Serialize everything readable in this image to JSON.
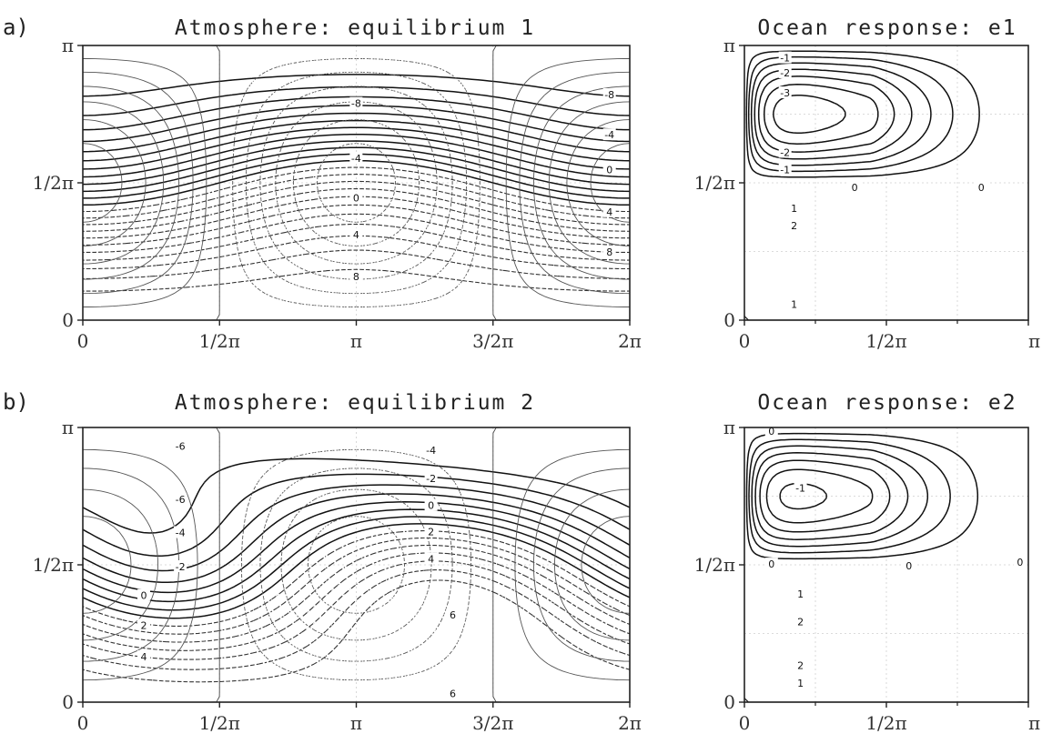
{
  "chart_data": [
    {
      "panel": "a)",
      "type": "contour",
      "title": "Atmosphere: equilibrium 1",
      "xticks": [
        "0",
        "1/2π",
        "π",
        "3/2π",
        "2π"
      ],
      "yticks": [
        "0",
        "1/2π",
        "π"
      ],
      "xlim": [
        0,
        6.2832
      ],
      "ylim": [
        0,
        3.1416
      ],
      "contour_labels": [
        {
          "text": "-8",
          "x": 6.05,
          "y": 2.58
        },
        {
          "text": "-4",
          "x": 6.05,
          "y": 2.12
        },
        {
          "text": "0",
          "x": 6.05,
          "y": 1.72
        },
        {
          "text": "4",
          "x": 6.05,
          "y": 1.24
        },
        {
          "text": "8",
          "x": 6.05,
          "y": 0.78
        },
        {
          "text": "-8",
          "x": 3.14,
          "y": 2.48
        },
        {
          "text": "-4",
          "x": 3.14,
          "y": 1.85
        },
        {
          "text": "0",
          "x": 3.14,
          "y": 1.4
        },
        {
          "text": "4",
          "x": 3.14,
          "y": 0.98
        },
        {
          "text": "8",
          "x": 3.14,
          "y": 0.5
        }
      ]
    },
    {
      "panel": "",
      "type": "contour",
      "title": "Ocean response: e1",
      "xticks": [
        "0",
        "1/2π",
        "π"
      ],
      "yticks": [
        "0",
        "1/2π",
        "π"
      ],
      "xlim": [
        0,
        3.1416
      ],
      "ylim": [
        0,
        3.1416
      ],
      "contour_labels": [
        {
          "text": "-1",
          "x": 0.45,
          "y": 3.0
        },
        {
          "text": "-2",
          "x": 0.45,
          "y": 2.83
        },
        {
          "text": "-3",
          "x": 0.45,
          "y": 2.6
        },
        {
          "text": "-2",
          "x": 0.45,
          "y": 1.92
        },
        {
          "text": "-1",
          "x": 0.45,
          "y": 1.72
        },
        {
          "text": "0",
          "x": 1.22,
          "y": 1.52
        },
        {
          "text": "0",
          "x": 2.62,
          "y": 1.52
        },
        {
          "text": "1",
          "x": 0.55,
          "y": 1.28
        },
        {
          "text": "2",
          "x": 0.55,
          "y": 1.08
        },
        {
          "text": "1",
          "x": 0.55,
          "y": 0.18
        }
      ]
    },
    {
      "panel": "b)",
      "type": "contour",
      "title": "Atmosphere: equilibrium 2",
      "xticks": [
        "0",
        "1/2π",
        "π",
        "3/2π",
        "2π"
      ],
      "yticks": [
        "0",
        "1/2π",
        "π"
      ],
      "xlim": [
        0,
        6.2832
      ],
      "ylim": [
        0,
        3.1416
      ],
      "contour_labels": [
        {
          "text": "-6",
          "x": 1.12,
          "y": 2.93
        },
        {
          "text": "-6",
          "x": 1.12,
          "y": 2.32
        },
        {
          "text": "-4",
          "x": 1.12,
          "y": 1.94
        },
        {
          "text": "-2",
          "x": 1.12,
          "y": 1.55
        },
        {
          "text": "0",
          "x": 0.7,
          "y": 1.22
        },
        {
          "text": "2",
          "x": 0.7,
          "y": 0.88
        },
        {
          "text": "4",
          "x": 0.7,
          "y": 0.52
        },
        {
          "text": "-4",
          "x": 4.0,
          "y": 2.88
        },
        {
          "text": "-2",
          "x": 4.0,
          "y": 2.56
        },
        {
          "text": "0",
          "x": 4.0,
          "y": 2.25
        },
        {
          "text": "2",
          "x": 4.0,
          "y": 1.95
        },
        {
          "text": "4",
          "x": 4.0,
          "y": 1.64
        },
        {
          "text": "6",
          "x": 4.25,
          "y": 1.0
        },
        {
          "text": "6",
          "x": 4.25,
          "y": 0.1
        }
      ]
    },
    {
      "panel": "",
      "type": "contour",
      "title": "Ocean response: e2",
      "xticks": [
        "0",
        "1/2π",
        "π"
      ],
      "yticks": [
        "0",
        "1/2π",
        "π"
      ],
      "xlim": [
        0,
        3.1416
      ],
      "ylim": [
        0,
        3.1416
      ],
      "contour_labels": [
        {
          "text": "0",
          "x": 0.3,
          "y": 3.1
        },
        {
          "text": "-1",
          "x": 0.62,
          "y": 2.45
        },
        {
          "text": "0",
          "x": 0.3,
          "y": 1.58
        },
        {
          "text": "0",
          "x": 1.82,
          "y": 1.56
        },
        {
          "text": "0",
          "x": 3.05,
          "y": 1.6
        },
        {
          "text": "1",
          "x": 0.62,
          "y": 1.24
        },
        {
          "text": "2",
          "x": 0.62,
          "y": 0.92
        },
        {
          "text": "2",
          "x": 0.62,
          "y": 0.42
        },
        {
          "text": "1",
          "x": 0.62,
          "y": 0.22
        }
      ]
    }
  ]
}
